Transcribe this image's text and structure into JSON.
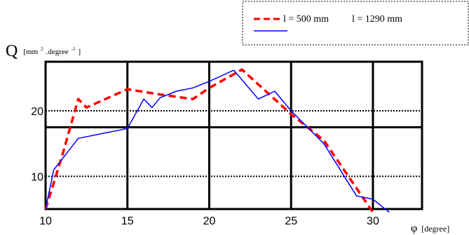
{
  "chart_data": {
    "type": "line",
    "title": "",
    "ylabel_main": "Q",
    "ylabel_unit": "[mm",
    "ylabel_sup1": "2",
    "ylabel_mid": ".degree",
    "ylabel_sup2": "-1",
    "ylabel_close": "]",
    "xlabel_main": "φ",
    "xlabel_unit": "[degree]",
    "xlim": [
      10,
      33
    ],
    "ylim": [
      5,
      27.5
    ],
    "x_ticks": [
      10,
      15,
      20,
      25,
      30
    ],
    "x_tick_labels": [
      "10",
      "15",
      "20",
      "25",
      "30"
    ],
    "y_ticks": [
      10,
      20
    ],
    "y_tick_labels": [
      "10",
      "20"
    ],
    "grid": true,
    "legend_position": "top-right",
    "series": [
      {
        "name": "l = 500 mm",
        "color": "#ff0000",
        "style": "dashed",
        "x": [
          10,
          11,
          12,
          12.5,
          15,
          17,
          19,
          20,
          22,
          25,
          27,
          30
        ],
        "y": [
          5,
          13,
          21.8,
          20.5,
          23.3,
          22.5,
          21.8,
          23.5,
          26.3,
          19.5,
          15.5,
          4.5
        ]
      },
      {
        "name": "l = 1290 mm",
        "color": "#0000ff",
        "style": "solid",
        "x": [
          10,
          10.5,
          12,
          14,
          15,
          16,
          16.5,
          17,
          18,
          19,
          20,
          21.5,
          23,
          24,
          25,
          27,
          29,
          30,
          31
        ],
        "y": [
          5,
          11,
          15.8,
          16.8,
          17.3,
          21.8,
          20.5,
          22,
          23,
          23.5,
          24.5,
          26.2,
          21.8,
          23,
          20,
          15,
          7,
          6.5,
          4.5
        ]
      }
    ]
  }
}
